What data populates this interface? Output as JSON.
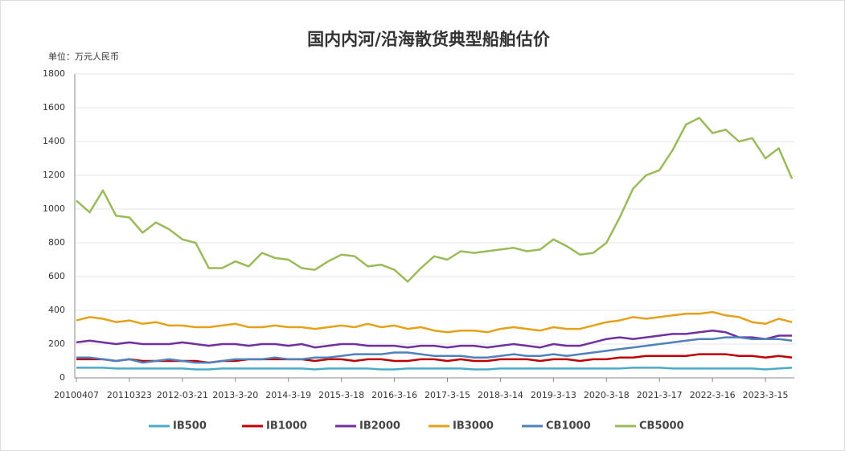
{
  "chart_data": {
    "type": "line",
    "title": "国内内河/沿海散货典型船舶估价",
    "subtitle": "单位：万元人民币",
    "categories": [
      "20100407",
      null,
      null,
      null,
      "20110323",
      null,
      null,
      null,
      "2012-03-21",
      null,
      null,
      null,
      "2013-3-20",
      null,
      null,
      null,
      "2014-3-19",
      null,
      null,
      null,
      "2015-3-18",
      null,
      null,
      null,
      "2016-3-16",
      null,
      null,
      null,
      "2017-3-15",
      null,
      null,
      null,
      "2018-3-14",
      null,
      null,
      null,
      "2019-3-13",
      null,
      null,
      null,
      "2020-3-18",
      null,
      null,
      null,
      "2021-3-17",
      null,
      null,
      null,
      "2022-3-16",
      null,
      null,
      null,
      "2023-3-15",
      null,
      null
    ],
    "series": [
      {
        "name": "IB500",
        "color": "#4bacc6",
        "values": [
          60,
          60,
          60,
          55,
          55,
          55,
          55,
          55,
          55,
          50,
          50,
          55,
          55,
          55,
          55,
          55,
          55,
          55,
          50,
          55,
          55,
          55,
          55,
          50,
          50,
          55,
          55,
          55,
          55,
          55,
          50,
          50,
          55,
          55,
          55,
          55,
          55,
          55,
          55,
          55,
          55,
          55,
          60,
          60,
          60,
          55,
          55,
          55,
          55,
          55,
          55,
          55,
          50,
          55,
          60
        ]
      },
      {
        "name": "IB1000",
        "color": "#c00000",
        "values": [
          110,
          110,
          110,
          100,
          110,
          100,
          100,
          100,
          100,
          100,
          90,
          100,
          100,
          110,
          110,
          110,
          110,
          110,
          100,
          110,
          110,
          100,
          110,
          110,
          100,
          100,
          110,
          110,
          100,
          110,
          100,
          100,
          110,
          110,
          110,
          100,
          110,
          110,
          100,
          110,
          110,
          120,
          120,
          130,
          130,
          130,
          130,
          140,
          140,
          140,
          130,
          130,
          120,
          130,
          120
        ]
      },
      {
        "name": "IB2000",
        "color": "#7030a0",
        "values": [
          210,
          220,
          210,
          200,
          210,
          200,
          200,
          200,
          210,
          200,
          190,
          200,
          200,
          190,
          200,
          200,
          190,
          200,
          180,
          190,
          200,
          200,
          190,
          190,
          190,
          180,
          190,
          190,
          180,
          190,
          190,
          180,
          190,
          200,
          190,
          180,
          200,
          190,
          190,
          210,
          230,
          240,
          230,
          240,
          250,
          260,
          260,
          270,
          280,
          270,
          240,
          240,
          230,
          250,
          250
        ]
      },
      {
        "name": "IB3000",
        "color": "#e6a118",
        "values": [
          340,
          360,
          350,
          330,
          340,
          320,
          330,
          310,
          310,
          300,
          300,
          310,
          320,
          300,
          300,
          310,
          300,
          300,
          290,
          300,
          310,
          300,
          320,
          300,
          310,
          290,
          300,
          280,
          270,
          280,
          280,
          270,
          290,
          300,
          290,
          280,
          300,
          290,
          290,
          310,
          330,
          340,
          360,
          350,
          360,
          370,
          380,
          380,
          390,
          370,
          360,
          330,
          320,
          350,
          330
        ]
      },
      {
        "name": "CB1000",
        "color": "#4f81bd",
        "values": [
          120,
          120,
          110,
          100,
          110,
          90,
          100,
          110,
          100,
          90,
          90,
          100,
          110,
          110,
          110,
          120,
          110,
          110,
          120,
          120,
          130,
          140,
          140,
          140,
          150,
          150,
          140,
          130,
          130,
          130,
          120,
          120,
          130,
          140,
          130,
          130,
          140,
          130,
          140,
          150,
          160,
          170,
          180,
          190,
          200,
          210,
          220,
          230,
          230,
          240,
          240,
          230,
          230,
          230,
          220
        ]
      },
      {
        "name": "CB5000",
        "color": "#9bbb59",
        "values": [
          1050,
          980,
          1110,
          960,
          950,
          860,
          920,
          880,
          820,
          800,
          650,
          650,
          690,
          660,
          740,
          710,
          700,
          650,
          640,
          690,
          730,
          720,
          660,
          670,
          640,
          570,
          650,
          720,
          700,
          750,
          740,
          750,
          760,
          770,
          750,
          760,
          820,
          780,
          730,
          740,
          800,
          950,
          1120,
          1200,
          1230,
          1350,
          1500,
          1540,
          1450,
          1470,
          1400,
          1420,
          1300,
          1360,
          1180
        ]
      }
    ],
    "ylim": [
      0,
      1800
    ],
    "yticks": [
      0,
      200,
      400,
      600,
      800,
      1000,
      1200,
      1400,
      1600,
      1800
    ],
    "grid": true,
    "legend": "bottom"
  }
}
